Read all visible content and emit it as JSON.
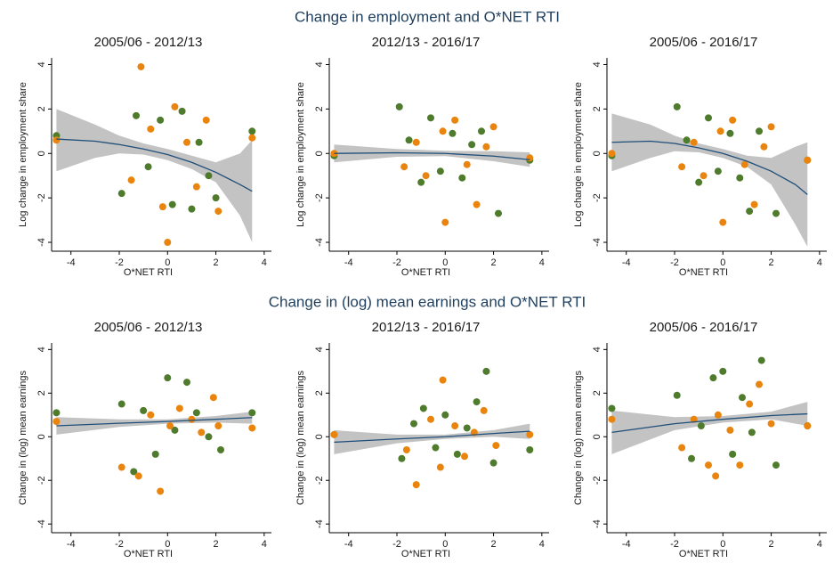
{
  "section_titles": [
    "Change in employment and O*NET RTI",
    "Change in (log) mean earnings and O*NET RTI"
  ],
  "chart_data": [
    {
      "type": "scatter",
      "title": "2005/06 - 2012/13",
      "x_label": "O*NET RTI",
      "y_label": "Log change in employment share",
      "xlim": [
        -4.8,
        4.3
      ],
      "ylim": [
        -4.4,
        4.3
      ],
      "xticks": [
        -4,
        -2,
        0,
        2,
        4
      ],
      "yticks": [
        -4,
        -2,
        0,
        2,
        4
      ],
      "series": [
        {
          "color": "#4f7b2c",
          "x": [
            -4.6,
            -1.9,
            -1.3,
            -0.8,
            -0.3,
            0.2,
            0.6,
            1.0,
            1.3,
            1.7,
            2.0,
            3.5
          ],
          "values": [
            0.8,
            -1.8,
            1.7,
            -0.6,
            1.5,
            -2.3,
            1.9,
            -2.5,
            0.5,
            -1.0,
            -2.0,
            1.0
          ]
        },
        {
          "color": "#e9850f",
          "x": [
            -4.6,
            -1.5,
            -1.1,
            -0.7,
            -0.2,
            0,
            0.3,
            0.8,
            1.2,
            1.6,
            2.1,
            3.5
          ],
          "values": [
            0.6,
            -1.2,
            3.9,
            1.1,
            -2.4,
            -4.0,
            2.1,
            0.5,
            -1.5,
            1.5,
            -2.6,
            0.7
          ]
        }
      ],
      "fit": {
        "color": "#1f4e79",
        "band_color": "#bdbdbd",
        "x": [
          -4.6,
          -3,
          -2,
          -1,
          0,
          1,
          2,
          3,
          3.5
        ],
        "values": [
          0.65,
          0.55,
          0.4,
          0.2,
          -0.05,
          -0.4,
          -0.85,
          -1.4,
          -1.7
        ],
        "lower": [
          -0.8,
          -0.2,
          0.0,
          -0.05,
          -0.3,
          -0.7,
          -1.3,
          -2.8,
          -4.0
        ],
        "upper": [
          2.0,
          1.3,
          0.8,
          0.45,
          0.2,
          -0.1,
          -0.4,
          0.0,
          0.6
        ]
      }
    },
    {
      "type": "scatter",
      "title": "2012/13 - 2016/17",
      "x_label": "O*NET RTI",
      "y_label": "Log change in employment share",
      "xlim": [
        -4.8,
        4.3
      ],
      "ylim": [
        -4.4,
        4.3
      ],
      "xticks": [
        -4,
        -2,
        0,
        2,
        4
      ],
      "yticks": [
        -4,
        -2,
        0,
        2,
        4
      ],
      "series": [
        {
          "color": "#4f7b2c",
          "x": [
            -4.6,
            -1.9,
            -1.5,
            -1.0,
            -0.6,
            -0.2,
            0.3,
            0.7,
            1.1,
            1.5,
            2.2,
            3.5
          ],
          "values": [
            -0.1,
            2.1,
            0.6,
            -1.3,
            1.6,
            -0.8,
            0.9,
            -1.1,
            0.4,
            1.0,
            -2.7,
            -0.3
          ]
        },
        {
          "color": "#e9850f",
          "x": [
            -4.6,
            -1.7,
            -1.2,
            -0.8,
            -0.1,
            0,
            0.4,
            0.9,
            1.3,
            1.7,
            2.0,
            3.5
          ],
          "values": [
            0.0,
            -0.6,
            0.5,
            -1.0,
            1.0,
            -3.1,
            1.5,
            -0.5,
            -2.3,
            0.3,
            1.2,
            -0.2
          ]
        }
      ],
      "fit": {
        "color": "#1f4e79",
        "band_color": "#bdbdbd",
        "x": [
          -4.6,
          -2,
          0,
          2,
          3.5
        ],
        "values": [
          0.0,
          0.03,
          0.0,
          -0.12,
          -0.28
        ],
        "lower": [
          -0.4,
          -0.15,
          -0.12,
          -0.35,
          -0.6
        ],
        "upper": [
          0.4,
          0.2,
          0.12,
          0.1,
          0.05
        ]
      }
    },
    {
      "type": "scatter",
      "title": "2005/06 - 2016/17",
      "x_label": "O*NET RTI",
      "y_label": "Log change in employment share",
      "xlim": [
        -4.8,
        4.3
      ],
      "ylim": [
        -4.4,
        4.3
      ],
      "xticks": [
        -4,
        -2,
        0,
        2,
        4
      ],
      "yticks": [
        -4,
        -2,
        0,
        2,
        4
      ],
      "series": [
        {
          "color": "#4f7b2c",
          "x": [
            -4.6,
            -1.9,
            -1.5,
            -1.0,
            -0.6,
            -0.2,
            0.3,
            0.7,
            1.1,
            1.5,
            2.2,
            3.5
          ],
          "values": [
            -0.1,
            2.1,
            0.6,
            -1.3,
            1.6,
            -0.8,
            0.9,
            -1.1,
            -2.6,
            1.0,
            -2.7,
            -0.3
          ]
        },
        {
          "color": "#e9850f",
          "x": [
            -4.6,
            -1.7,
            -1.2,
            -0.8,
            -0.1,
            0,
            0.4,
            0.9,
            1.3,
            1.7,
            2.0,
            3.5
          ],
          "values": [
            0.0,
            -0.6,
            0.5,
            -1.0,
            1.0,
            -3.1,
            1.5,
            -0.5,
            -2.3,
            0.3,
            1.2,
            -0.3
          ]
        }
      ],
      "fit": {
        "color": "#1f4e79",
        "band_color": "#bdbdbd",
        "x": [
          -4.6,
          -3,
          -2,
          -1,
          0,
          1,
          2,
          3,
          3.5
        ],
        "values": [
          0.5,
          0.55,
          0.45,
          0.25,
          0.0,
          -0.35,
          -0.8,
          -1.4,
          -1.85
        ],
        "lower": [
          -0.8,
          -0.2,
          0.1,
          0.05,
          -0.2,
          -0.6,
          -1.4,
          -3.2,
          -4.2
        ],
        "upper": [
          1.8,
          1.3,
          0.8,
          0.45,
          0.2,
          -0.1,
          -0.2,
          0.3,
          0.5
        ]
      }
    },
    {
      "type": "scatter",
      "title": "2005/06 - 2012/13",
      "x_label": "O*NET RTI",
      "y_label": "Change in (log) mean earnings",
      "xlim": [
        -4.8,
        4.3
      ],
      "ylim": [
        -4.4,
        4.3
      ],
      "xticks": [
        -4,
        -2,
        0,
        2,
        4
      ],
      "yticks": [
        -4,
        -2,
        0,
        2,
        4
      ],
      "series": [
        {
          "color": "#4f7b2c",
          "x": [
            -4.6,
            -1.9,
            -1.4,
            -1.0,
            -0.5,
            0,
            0.3,
            0.8,
            1.2,
            1.7,
            2.2,
            3.5
          ],
          "values": [
            1.1,
            1.5,
            -1.6,
            1.2,
            -0.8,
            2.7,
            0.3,
            2.5,
            1.1,
            0.0,
            -0.6,
            1.1
          ]
        },
        {
          "color": "#e9850f",
          "x": [
            -4.6,
            -1.9,
            -1.2,
            -0.7,
            -0.3,
            0.1,
            0.5,
            1.0,
            1.4,
            1.9,
            2.1,
            3.5
          ],
          "values": [
            0.7,
            -1.4,
            -1.8,
            1.0,
            -2.5,
            0.5,
            1.3,
            0.8,
            0.2,
            1.8,
            0.5,
            0.4
          ]
        }
      ],
      "fit": {
        "color": "#1f4e79",
        "band_color": "#bdbdbd",
        "x": [
          -4.6,
          -2,
          0,
          2,
          3.5
        ],
        "values": [
          0.5,
          0.62,
          0.7,
          0.8,
          0.88
        ],
        "lower": [
          0.1,
          0.45,
          0.6,
          0.65,
          0.6
        ],
        "upper": [
          0.9,
          0.8,
          0.8,
          0.95,
          1.15
        ]
      }
    },
    {
      "type": "scatter",
      "title": "2012/13 - 2016/17",
      "x_label": "O*NET RTI",
      "y_label": "Change in (log) mean earnings",
      "xlim": [
        -4.8,
        4.3
      ],
      "ylim": [
        -4.4,
        4.3
      ],
      "xticks": [
        -4,
        -2,
        0,
        2,
        4
      ],
      "yticks": [
        -4,
        -2,
        0,
        2,
        4
      ],
      "series": [
        {
          "color": "#4f7b2c",
          "x": [
            -4.6,
            -1.8,
            -1.3,
            -0.9,
            -0.4,
            0,
            0.5,
            0.9,
            1.3,
            1.7,
            2.0,
            3.5
          ],
          "values": [
            0.1,
            -1.0,
            0.6,
            1.3,
            -0.5,
            1.0,
            -0.8,
            0.4,
            1.6,
            3.0,
            -1.2,
            -0.6
          ]
        },
        {
          "color": "#e9850f",
          "x": [
            -4.6,
            -1.6,
            -1.2,
            -0.6,
            -0.2,
            -0.1,
            0.4,
            0.8,
            1.2,
            1.6,
            2.1,
            3.5
          ],
          "values": [
            0.1,
            -0.6,
            -2.2,
            0.8,
            -1.4,
            2.6,
            0.5,
            -0.9,
            0.2,
            1.2,
            -0.4,
            0.1
          ]
        }
      ],
      "fit": {
        "color": "#1f4e79",
        "band_color": "#bdbdbd",
        "x": [
          -4.6,
          -2,
          0,
          2,
          3.5
        ],
        "values": [
          -0.25,
          -0.1,
          0.0,
          0.15,
          0.25
        ],
        "lower": [
          -0.8,
          -0.3,
          -0.1,
          0.0,
          -0.1
        ],
        "upper": [
          0.3,
          0.1,
          0.1,
          0.3,
          0.6
        ]
      }
    },
    {
      "type": "scatter",
      "title": "2005/06 - 2016/17",
      "x_label": "O*NET RTI",
      "y_label": "Change in (log) mean earnings",
      "xlim": [
        -4.8,
        4.3
      ],
      "ylim": [
        -4.4,
        4.3
      ],
      "xticks": [
        -4,
        -2,
        0,
        2,
        4
      ],
      "yticks": [
        -4,
        -2,
        0,
        2,
        4
      ],
      "series": [
        {
          "color": "#4f7b2c",
          "x": [
            -4.6,
            -1.9,
            -1.3,
            -0.9,
            -0.4,
            0,
            0.4,
            0.8,
            1.2,
            1.6,
            2.2,
            3.5
          ],
          "values": [
            1.3,
            1.9,
            -1.0,
            0.5,
            2.7,
            3.0,
            -0.8,
            1.8,
            0.2,
            3.5,
            -1.3,
            0.5
          ]
        },
        {
          "color": "#e9850f",
          "x": [
            -4.6,
            -1.7,
            -1.2,
            -0.6,
            -0.3,
            -0.2,
            0.3,
            0.7,
            1.1,
            1.5,
            2.0,
            3.5
          ],
          "values": [
            0.8,
            -0.5,
            0.8,
            -1.3,
            -1.8,
            1.0,
            0.3,
            -1.3,
            1.5,
            2.4,
            0.6,
            0.5
          ]
        }
      ],
      "fit": {
        "color": "#1f4e79",
        "band_color": "#bdbdbd",
        "x": [
          -4.6,
          -2,
          0,
          2,
          3.5
        ],
        "values": [
          0.2,
          0.6,
          0.8,
          0.97,
          1.05
        ],
        "lower": [
          -0.8,
          0.3,
          0.65,
          0.8,
          0.5
        ],
        "upper": [
          1.2,
          0.9,
          0.95,
          1.15,
          1.6
        ]
      }
    }
  ]
}
